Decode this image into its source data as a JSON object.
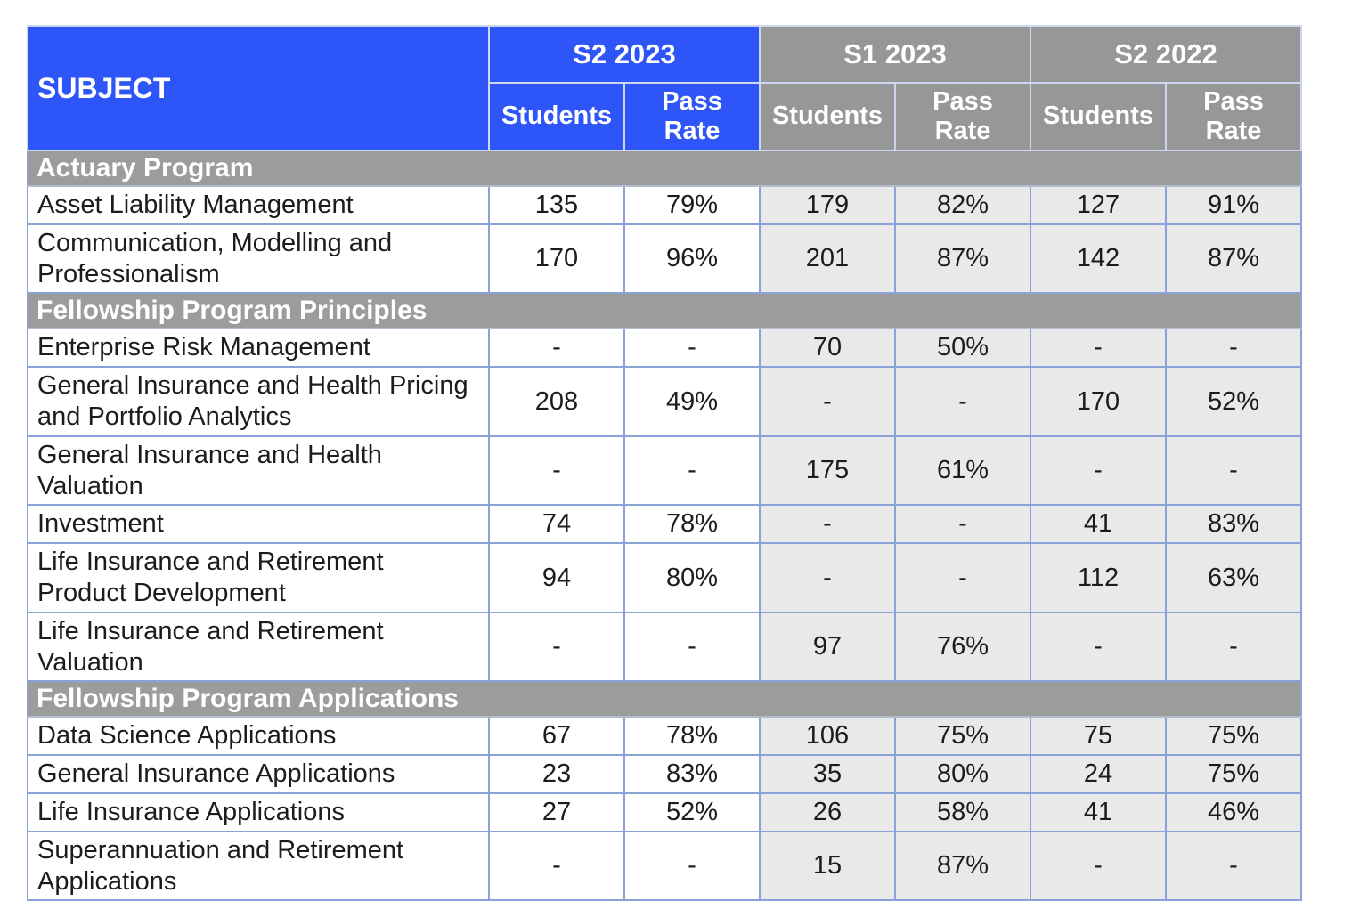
{
  "chart_data": {
    "type": "table",
    "title": "",
    "header": {
      "subject": "SUBJECT",
      "periods": [
        "S2 2023",
        "S1 2023",
        "S2 2022"
      ],
      "sub_columns": [
        "Students",
        "Pass Rate"
      ]
    },
    "columns": [
      "SUBJECT",
      "S2 2023 Students",
      "S2 2023 Pass Rate",
      "S1 2023 Students",
      "S1 2023 Pass Rate",
      "S2 2022 Students",
      "S2 2022 Pass Rate"
    ],
    "sections": [
      {
        "title": "Actuary Program",
        "rows": [
          {
            "subject": "Asset Liability Management",
            "values": [
              "135",
              "79%",
              "179",
              "82%",
              "127",
              "91%"
            ]
          },
          {
            "subject": "Communication, Modelling and Professionalism",
            "values": [
              "170",
              "96%",
              "201",
              "87%",
              "142",
              "87%"
            ]
          }
        ]
      },
      {
        "title": "Fellowship Program Principles",
        "rows": [
          {
            "subject": "Enterprise Risk Management",
            "values": [
              "-",
              "-",
              "70",
              "50%",
              "-",
              "-"
            ]
          },
          {
            "subject": "General Insurance and Health Pricing and Portfolio Analytics",
            "values": [
              "208",
              "49%",
              "-",
              "-",
              "170",
              "52%"
            ]
          },
          {
            "subject": "General Insurance and Health Valuation",
            "values": [
              "-",
              "-",
              "175",
              "61%",
              "-",
              "-"
            ]
          },
          {
            "subject": "Investment",
            "values": [
              "74",
              "78%",
              "-",
              "-",
              "41",
              "83%"
            ]
          },
          {
            "subject": "Life Insurance and Retirement Product Development",
            "values": [
              "94",
              "80%",
              "-",
              "-",
              "112",
              "63%"
            ]
          },
          {
            "subject": "Life Insurance and Retirement Valuation",
            "values": [
              "-",
              "-",
              "97",
              "76%",
              "-",
              "-"
            ]
          }
        ]
      },
      {
        "title": "Fellowship Program Applications",
        "rows": [
          {
            "subject": "Data Science Applications",
            "values": [
              "67",
              "78%",
              "106",
              "75%",
              "75",
              "75%"
            ]
          },
          {
            "subject": "General Insurance Applications",
            "values": [
              "23",
              "83%",
              "35",
              "80%",
              "24",
              "75%"
            ]
          },
          {
            "subject": "Life Insurance Applications",
            "values": [
              "27",
              "52%",
              "26",
              "58%",
              "41",
              "46%"
            ]
          },
          {
            "subject": "Superannuation and Retirement Applications",
            "values": [
              "-",
              "-",
              "15",
              "87%",
              "-",
              "-"
            ]
          }
        ]
      }
    ],
    "layout": {
      "shaded_value_columns": [
        "S1 2023",
        "S2 2022"
      ],
      "plain_value_columns": [
        "S2 2023"
      ]
    }
  },
  "colors": {
    "header_blue": "#2d55f7",
    "header_gray": "#979797",
    "section_gray": "#9c9c9c",
    "row_shade_gray": "#e9e9e9",
    "grid_border_blue": "#8aa2d8",
    "header_text": "#ffffff",
    "body_text": "#1c1c1c"
  }
}
